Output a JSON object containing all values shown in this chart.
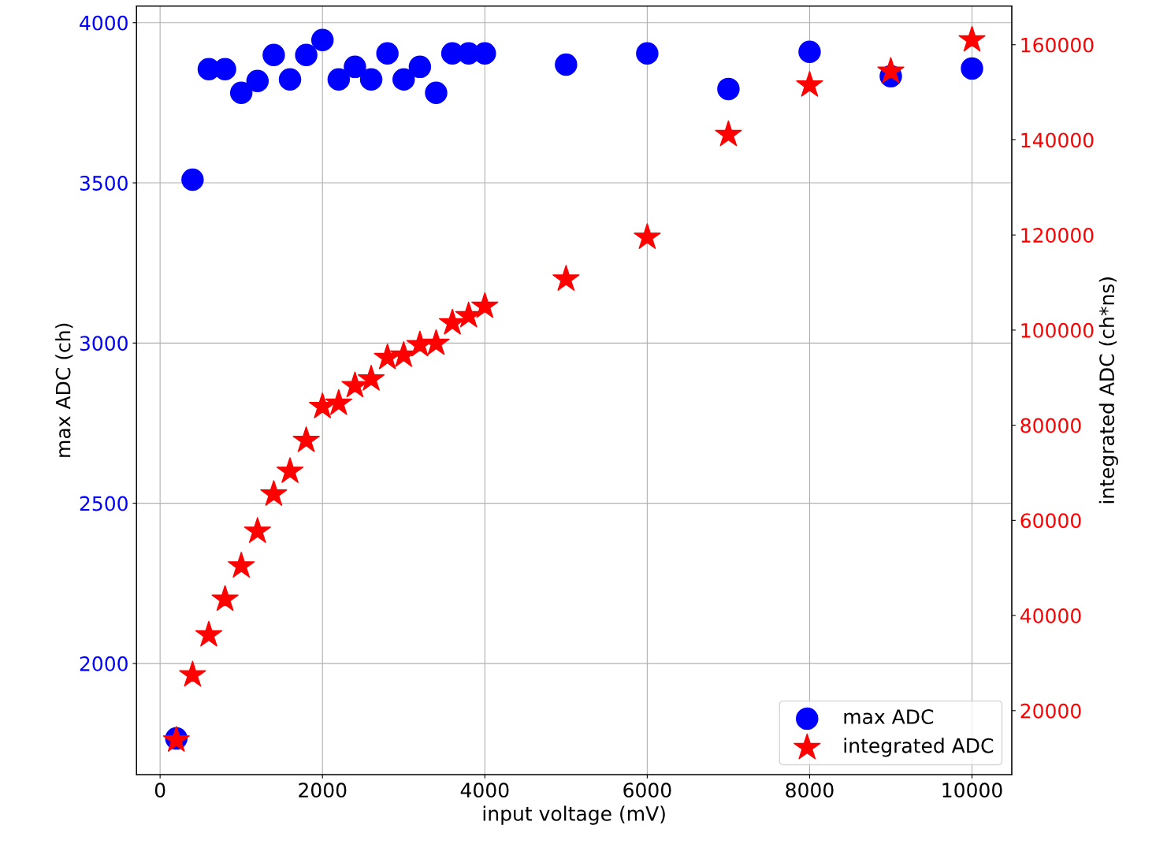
{
  "chart_data": {
    "type": "scatter",
    "xlabel": "input voltage (mV)",
    "ylabel": "max ADC (ch)",
    "y2label": "integrated ADC (ch*ns)",
    "x": [
      200,
      400,
      600,
      800,
      1000,
      1200,
      1400,
      1600,
      1800,
      2000,
      2200,
      2400,
      2600,
      2800,
      3000,
      3200,
      3400,
      3600,
      3800,
      4000,
      5000,
      6000,
      7000,
      8000,
      9000,
      10000
    ],
    "series": [
      {
        "name": "max ADC",
        "color": "#0000ff",
        "marker": "circle",
        "values": [
          1766,
          3510,
          3855,
          3855,
          3781,
          3818,
          3899,
          3823,
          3899,
          3946,
          3823,
          3862,
          3823,
          3904,
          3823,
          3862,
          3781,
          3904,
          3904,
          3904,
          3869,
          3904,
          3793,
          3909,
          3833,
          3857
        ]
      },
      {
        "name": "integrated ADC",
        "color": "#ff0000",
        "marker": "star",
        "axis": "y2",
        "values": [
          13800,
          27500,
          35900,
          43400,
          50400,
          57700,
          65500,
          70300,
          76800,
          83900,
          84600,
          88300,
          89700,
          94200,
          94700,
          96900,
          97200,
          101500,
          103000,
          105000,
          110700,
          119500,
          141100,
          151500,
          154400,
          161000
        ]
      }
    ],
    "xlim": [
      -290,
      10490
    ],
    "xticks": [
      0,
      2000,
      4000,
      6000,
      8000,
      10000
    ],
    "ylim": [
      1653,
      4052
    ],
    "yticks": [
      2000,
      2500,
      3000,
      3500,
      4000
    ],
    "y2lim": [
      6545,
      168140
    ],
    "y2ticks": [
      20000,
      40000,
      60000,
      80000,
      100000,
      120000,
      140000,
      160000
    ],
    "grid": true,
    "legend": "bottom right"
  }
}
